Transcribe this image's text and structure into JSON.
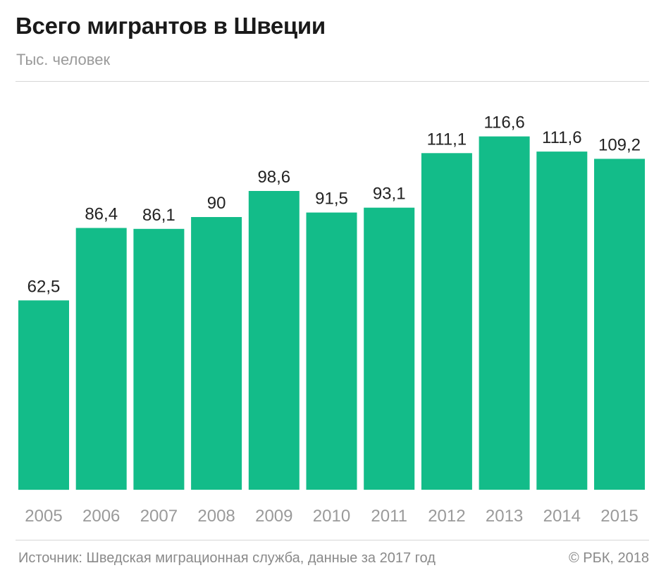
{
  "header": {
    "title": "Всего мигрантов в Швеции",
    "subtitle": "Тыс. человек"
  },
  "footer": {
    "source": "Источник: Шведская миграционная служба, данные за 2017 год",
    "copyright": "© РБК, 2018"
  },
  "colors": {
    "bar": "#13bc89"
  },
  "chart_data": {
    "type": "bar",
    "title": "Всего мигрантов в Швеции",
    "ylabel": "Тыс. человек",
    "xlabel": "",
    "categories": [
      "2005",
      "2006",
      "2007",
      "2008",
      "2009",
      "2010",
      "2011",
      "2012",
      "2013",
      "2014",
      "2015"
    ],
    "values": [
      62.5,
      86.4,
      86.1,
      90,
      98.6,
      91.5,
      93.1,
      111.1,
      116.6,
      111.6,
      109.2
    ],
    "value_labels": [
      "62,5",
      "86,4",
      "86,1",
      "90",
      "98,6",
      "91,5",
      "93,1",
      "111,1",
      "116,6",
      "111,6",
      "109,2"
    ],
    "ylim": [
      0,
      125
    ],
    "grid": false,
    "legend": "none"
  }
}
